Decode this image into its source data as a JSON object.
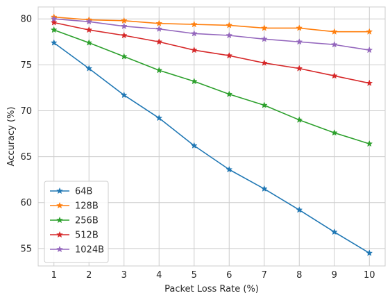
{
  "chart_data": {
    "type": "line",
    "xlabel": "Packet Loss Rate (%)",
    "ylabel": "Accuracy (%)",
    "x": [
      1,
      2,
      3,
      4,
      5,
      6,
      7,
      8,
      9,
      10
    ],
    "xlim": [
      0.55,
      10.45
    ],
    "ylim": [
      53.1,
      81.3
    ],
    "xticks": [
      1,
      2,
      3,
      4,
      5,
      6,
      7,
      8,
      9,
      10
    ],
    "yticks": [
      55,
      60,
      65,
      70,
      75,
      80
    ],
    "grid": true,
    "legend_position": "lower-left",
    "marker": "star",
    "series": [
      {
        "name": "64B",
        "color": "#1f77b4",
        "values": [
          77.4,
          74.6,
          71.7,
          69.2,
          66.2,
          63.6,
          61.5,
          59.2,
          56.8,
          54.5
        ]
      },
      {
        "name": "128B",
        "color": "#ff7f0e",
        "values": [
          80.2,
          79.9,
          79.8,
          79.5,
          79.4,
          79.3,
          79.0,
          79.0,
          78.6,
          78.6
        ]
      },
      {
        "name": "256B",
        "color": "#2ca02c",
        "values": [
          78.8,
          77.4,
          75.9,
          74.4,
          73.2,
          71.8,
          70.6,
          69.0,
          67.6,
          66.4
        ]
      },
      {
        "name": "512B",
        "color": "#d62728",
        "values": [
          79.6,
          78.8,
          78.2,
          77.5,
          76.6,
          76.0,
          75.2,
          74.6,
          73.8,
          73.0
        ]
      },
      {
        "name": "1024B",
        "color": "#9467bd",
        "values": [
          80.0,
          79.7,
          79.2,
          78.9,
          78.4,
          78.2,
          77.8,
          77.5,
          77.2,
          76.6
        ]
      }
    ]
  }
}
